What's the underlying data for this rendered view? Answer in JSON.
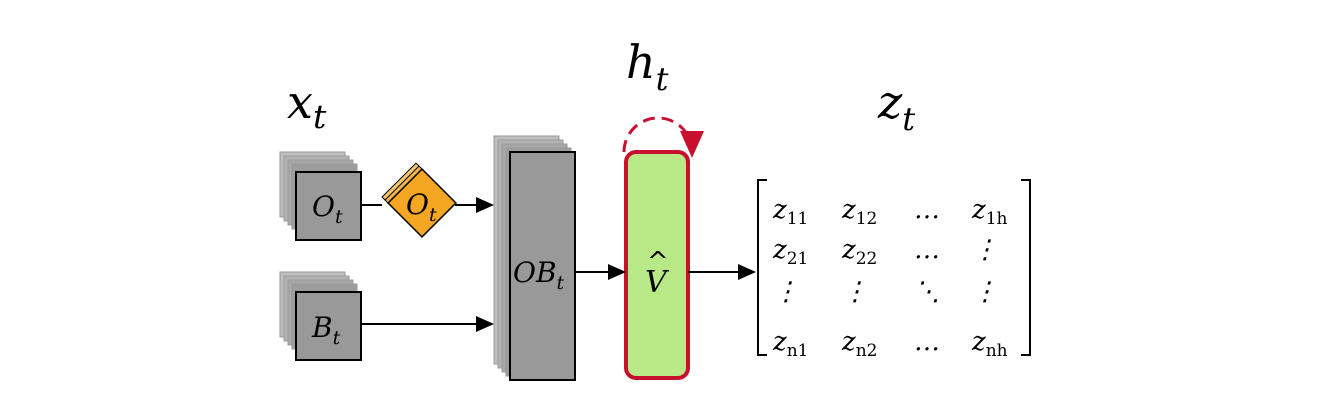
{
  "labels": {
    "input_main": "x",
    "input_sub": "t",
    "hidden_main": "h",
    "hidden_sub": "t",
    "output_main": "z",
    "output_sub": "t",
    "o_main": "O",
    "o_sub": "t",
    "o_conv_main": "O",
    "o_conv_sub": "t",
    "b_main": "B",
    "b_sub": "t",
    "ob_main": "OB",
    "ob_sub": "t",
    "v_hat_main": "V",
    "v_hat_accent": "^"
  },
  "matrix": {
    "rows": [
      [
        {
          "m": "z",
          "s": "11"
        },
        {
          "m": "z",
          "s": "12"
        },
        {
          "m": "…",
          "s": ""
        },
        {
          "m": "z",
          "s": "1h"
        }
      ],
      [
        {
          "m": "z",
          "s": "21"
        },
        {
          "m": "z",
          "s": "22"
        },
        {
          "m": "…",
          "s": ""
        },
        {
          "m": "⋮",
          "s": ""
        }
      ],
      [
        {
          "m": "⋮",
          "s": ""
        },
        {
          "m": "⋮",
          "s": ""
        },
        {
          "m": "⋱",
          "s": ""
        },
        {
          "m": "⋮",
          "s": ""
        }
      ],
      [
        {
          "m": "z",
          "s": "n1"
        },
        {
          "m": "z",
          "s": "n2"
        },
        {
          "m": "…",
          "s": ""
        },
        {
          "m": "z",
          "s": "nh"
        }
      ]
    ]
  },
  "colors": {
    "frame_gray": "#999999",
    "frame_light": "#bbbbbb",
    "orange": "#f5a623",
    "green": "#b8e986",
    "red": "#c8102e"
  }
}
